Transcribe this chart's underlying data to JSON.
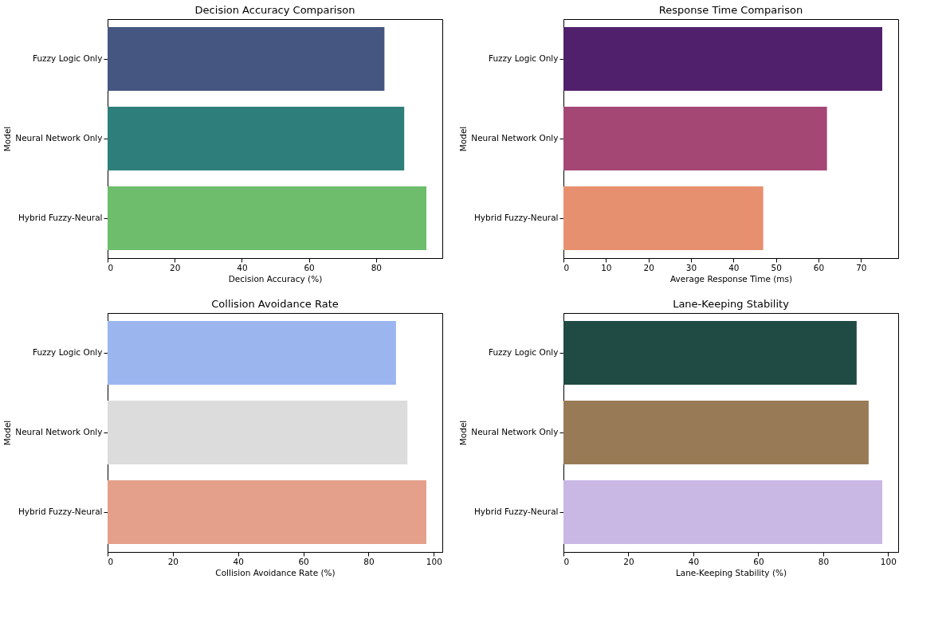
{
  "chart_data": [
    {
      "type": "bar",
      "orientation": "horizontal",
      "title": "Decision Accuracy Comparison",
      "xlabel": "Decision Accuracy (%)",
      "ylabel": "Model",
      "categories": [
        "Fuzzy Logic Only",
        "Neural Network Only",
        "Hybrid Fuzzy-Neural"
      ],
      "values": [
        82.5,
        88.4,
        95
      ],
      "colors": [
        "#455681",
        "#2e7f7b",
        "#6dbd6d"
      ],
      "xlim": [
        0,
        99.75
      ],
      "xticks": [
        0,
        20,
        40,
        60,
        80
      ]
    },
    {
      "type": "bar",
      "orientation": "horizontal",
      "title": "Response Time Comparison",
      "xlabel": "Average Response Time (ms)",
      "ylabel": "Model",
      "categories": [
        "Fuzzy Logic Only",
        "Neural Network Only",
        "Hybrid Fuzzy-Neural"
      ],
      "values": [
        75,
        62,
        47
      ],
      "colors": [
        "#51206d",
        "#a54775",
        "#e7906f"
      ],
      "xlim": [
        0,
        78.75
      ],
      "xticks": [
        0,
        10,
        20,
        30,
        40,
        50,
        60,
        70
      ]
    },
    {
      "type": "bar",
      "orientation": "horizontal",
      "title": "Collision Avoidance Rate",
      "xlabel": "Collision Avoidance Rate (%)",
      "ylabel": "Model",
      "categories": [
        "Fuzzy Logic Only",
        "Neural Network Only",
        "Hybrid Fuzzy-Neural"
      ],
      "values": [
        88.4,
        91.9,
        97.7
      ],
      "colors": [
        "#9bb5ef",
        "#dcdcdc",
        "#e4a08a"
      ],
      "xlim": [
        0,
        102.6
      ],
      "xticks": [
        0,
        20,
        40,
        60,
        80,
        100
      ]
    },
    {
      "type": "bar",
      "orientation": "horizontal",
      "title": "Lane-Keeping Stability",
      "xlabel": "Lane-Keeping Stability (%)",
      "ylabel": "Model",
      "categories": [
        "Fuzzy Logic Only",
        "Neural Network Only",
        "Hybrid Fuzzy-Neural"
      ],
      "values": [
        90.3,
        94,
        98.2
      ],
      "colors": [
        "#1f4b44",
        "#987b56",
        "#c9b8e4"
      ],
      "xlim": [
        0,
        103.1
      ],
      "xticks": [
        0,
        20,
        40,
        60,
        80,
        100
      ]
    }
  ]
}
